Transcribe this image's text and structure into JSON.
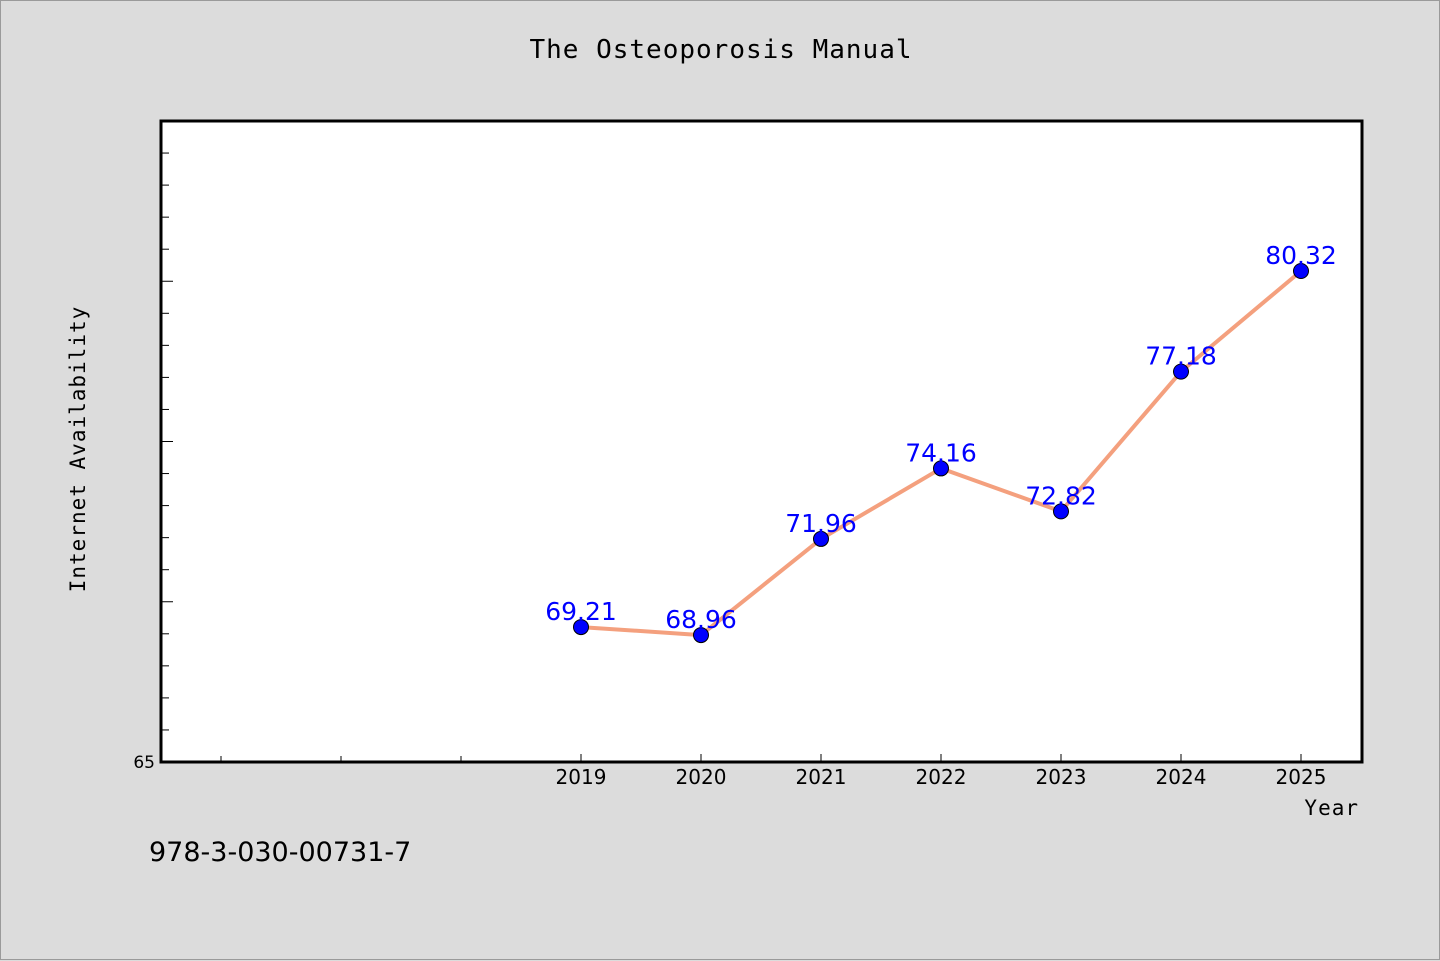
{
  "title": "The Osteoporosis Manual",
  "footer_text": "978-3-030-00731-7",
  "colors": {
    "background": "#dcdcdc",
    "plot_bg": "#ffffff",
    "line": "#f4a07e",
    "marker": "#0000ff",
    "label": "#0000ff"
  },
  "chart_data": {
    "type": "line",
    "title": "The Osteoporosis Manual",
    "xlabel": "Year",
    "ylabel": "Internet Availability",
    "x": [
      "2019",
      "2020",
      "2021",
      "2022",
      "2023",
      "2024",
      "2025"
    ],
    "series": [
      {
        "values": [
          69.21,
          68.96,
          71.96,
          74.16,
          72.82,
          77.18,
          80.32
        ]
      }
    ],
    "data_labels": [
      "69.21",
      "68.96",
      "71.96",
      "74.16",
      "72.82",
      "77.18",
      "80.32"
    ],
    "ylim": [
      65,
      85
    ],
    "y_tick_labels": [
      "65"
    ],
    "grid": false,
    "legend": "none"
  }
}
